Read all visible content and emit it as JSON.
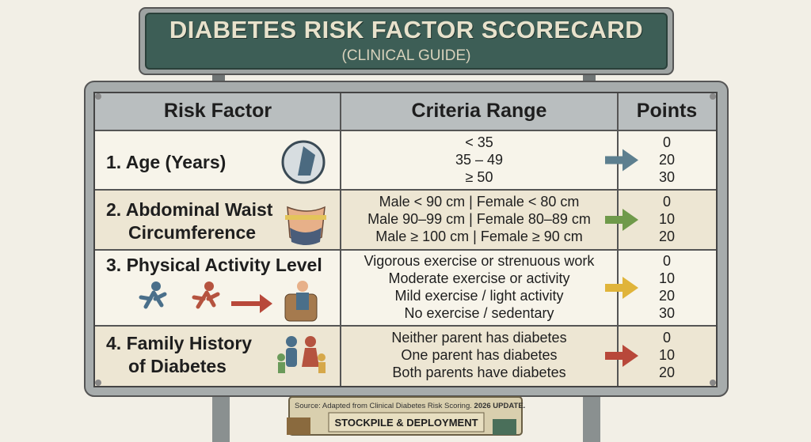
{
  "header": {
    "title": "DIABETES RISK FACTOR SCORECARD",
    "subtitle": "(CLINICAL GUIDE)"
  },
  "table": {
    "columns": [
      "Risk Factor",
      "Criteria Range",
      "Points"
    ],
    "rows": [
      {
        "factor": [
          "1. Age (Years)"
        ],
        "criteria": [
          "< 35",
          "35 – 49",
          "≥ 50"
        ],
        "points": [
          "0",
          "20",
          "30"
        ]
      },
      {
        "factor": [
          "2. Abdominal Waist",
          "Circumference"
        ],
        "criteria": [
          "Male < 90 cm | Female < 80 cm",
          "Male 90–99 cm | Female 80–89 cm",
          "Male ≥ 100 cm | Female ≥ 90 cm"
        ],
        "points": [
          "0",
          "10",
          "20"
        ]
      },
      {
        "factor": [
          "3. Physical Activity Level"
        ],
        "criteria": [
          "Vigorous exercise or strenuous work",
          "Moderate exercise or activity",
          "Mild exercise / light activity",
          "No exercise / sedentary"
        ],
        "points": [
          "0",
          "10",
          "20",
          "30"
        ]
      },
      {
        "factor": [
          "4. Family History",
          "of Diabetes"
        ],
        "criteria": [
          "Neither parent has diabetes",
          "One parent has diabetes",
          "Both parents have diabetes"
        ],
        "points": [
          "0",
          "10",
          "20"
        ]
      }
    ]
  },
  "footer": {
    "source": "Source: Adapted from Clinical Diabetes Risk Scoring.",
    "source_emphasis": "2026 UPDATE.",
    "badge": "STOCKPILE & DEPLOYMENT"
  }
}
